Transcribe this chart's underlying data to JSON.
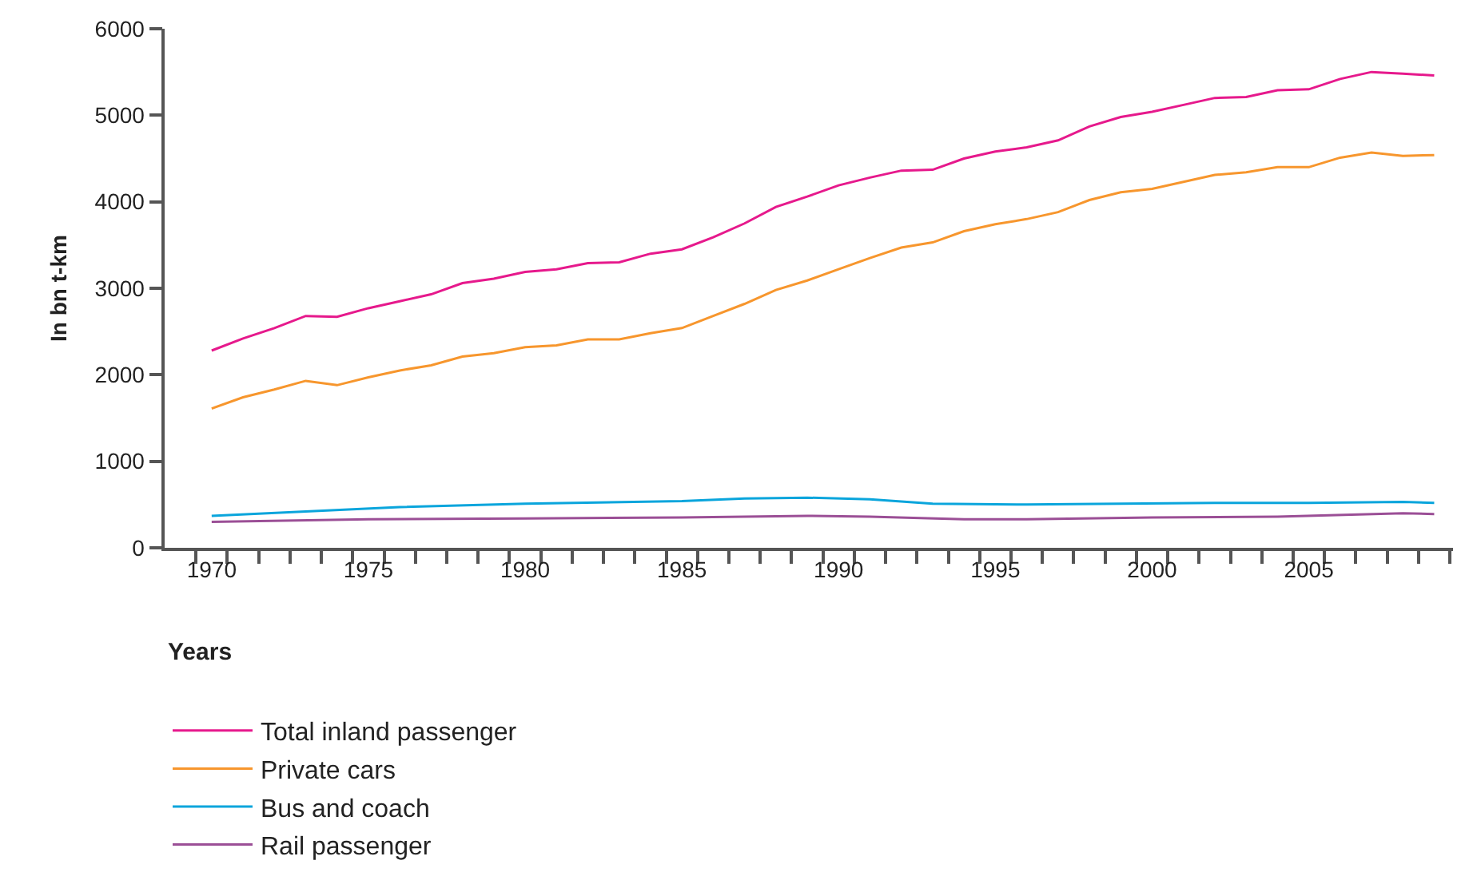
{
  "chart_data": {
    "type": "line",
    "xlabel": "Years",
    "ylabel": "In bn t-km",
    "x": [
      1970,
      1971,
      1972,
      1973,
      1974,
      1975,
      1976,
      1977,
      1978,
      1979,
      1980,
      1981,
      1982,
      1983,
      1984,
      1985,
      1986,
      1987,
      1988,
      1989,
      1990,
      1991,
      1992,
      1993,
      1994,
      1995,
      1996,
      1997,
      1998,
      1999,
      2000,
      2001,
      2002,
      2003,
      2004,
      2005,
      2006,
      2007,
      2008,
      2009
    ],
    "series": [
      {
        "name": "Total inland passenger",
        "color": "#e6198c",
        "values": [
          2280,
          2420,
          2540,
          2680,
          2670,
          2770,
          2850,
          2930,
          3060,
          3110,
          3190,
          3220,
          3290,
          3300,
          3400,
          3450,
          3590,
          3750,
          3940,
          4060,
          4190,
          4280,
          4360,
          4370,
          4500,
          4580,
          4630,
          4710,
          4870,
          4980,
          5040,
          5120,
          5200,
          5210,
          5290,
          5300,
          5420,
          5500,
          5480,
          5460
        ]
      },
      {
        "name": "Private cars",
        "color": "#f7962d",
        "values": [
          1610,
          1740,
          1830,
          1930,
          1880,
          1970,
          2050,
          2110,
          2210,
          2250,
          2320,
          2340,
          2410,
          2410,
          2480,
          2540,
          2680,
          2820,
          2980,
          3090,
          3220,
          3350,
          3470,
          3530,
          3660,
          3740,
          3800,
          3880,
          4020,
          4110,
          4150,
          4230,
          4310,
          4340,
          4400,
          4400,
          4510,
          4570,
          4530,
          4540
        ]
      },
      {
        "name": "Bus and coach",
        "color": "#0aa5dc",
        "x": [
          1970,
          1973,
          1976,
          1980,
          1985,
          1987,
          1989,
          1991,
          1993,
          1996,
          1999,
          2002,
          2005,
          2008,
          2009
        ],
        "values": [
          370,
          420,
          470,
          510,
          540,
          570,
          580,
          560,
          510,
          500,
          510,
          520,
          520,
          530,
          520
        ]
      },
      {
        "name": "Rail passenger",
        "color": "#9b4f96",
        "x": [
          1970,
          1975,
          1980,
          1985,
          1989,
          1991,
          1994,
          1996,
          2000,
          2004,
          2008,
          2009
        ],
        "values": [
          300,
          330,
          340,
          350,
          370,
          360,
          330,
          330,
          350,
          360,
          400,
          390
        ]
      }
    ],
    "xlim": [
      1968.5,
      2009.6
    ],
    "xticks": [
      {
        "value": 1969.5,
        "label": null
      },
      1970,
      {
        "value": 1970.5,
        "label": null
      },
      {
        "value": 1971.5,
        "label": null
      },
      {
        "value": 1972.5,
        "label": null
      },
      {
        "value": 1973.5,
        "label": null
      },
      1975,
      {
        "value": 1974.5,
        "label": null
      },
      {
        "value": 1975.5,
        "label": null
      },
      {
        "value": 1976.5,
        "label": null
      },
      {
        "value": 1977.5,
        "label": null
      },
      {
        "value": 1978.5,
        "label": null
      },
      1980,
      {
        "value": 1979.5,
        "label": null
      },
      {
        "value": 1980.5,
        "label": null
      },
      {
        "value": 1981.5,
        "label": null
      },
      {
        "value": 1982.5,
        "label": null
      },
      {
        "value": 1983.5,
        "label": null
      },
      1985,
      {
        "value": 1984.5,
        "label": null
      },
      {
        "value": 1985.5,
        "label": null
      },
      {
        "value": 1986.5,
        "label": null
      },
      {
        "value": 1987.5,
        "label": null
      },
      {
        "value": 1988.5,
        "label": null
      },
      1990,
      {
        "value": 1989.5,
        "label": null
      },
      {
        "value": 1990.5,
        "label": null
      },
      {
        "value": 1991.5,
        "label": null
      },
      {
        "value": 1992.5,
        "label": null
      },
      {
        "value": 1993.5,
        "label": null
      },
      1995,
      {
        "value": 1994.5,
        "label": null
      },
      {
        "value": 1995.5,
        "label": null
      },
      {
        "value": 1996.5,
        "label": null
      },
      {
        "value": 1997.5,
        "label": null
      },
      {
        "value": 1998.5,
        "label": null
      },
      2000,
      {
        "value": 1999.5,
        "label": null
      },
      {
        "value": 2000.5,
        "label": null
      },
      {
        "value": 2001.5,
        "label": null
      },
      {
        "value": 2002.5,
        "label": null
      },
      {
        "value": 2003.5,
        "label": null
      },
      2005,
      {
        "value": 2004.5,
        "label": null
      },
      {
        "value": 2005.5,
        "label": null
      },
      {
        "value": 2006.5,
        "label": null
      },
      {
        "value": 2007.5,
        "label": null
      },
      {
        "value": 2008.5,
        "label": null
      },
      {
        "value": 2009.5,
        "label": null
      }
    ],
    "ylim": [
      0,
      6000
    ],
    "yticks": [
      0,
      1000,
      2000,
      3000,
      4000,
      5000,
      6000
    ],
    "legend": "bottom",
    "marker": "none",
    "line_style": "solid"
  }
}
